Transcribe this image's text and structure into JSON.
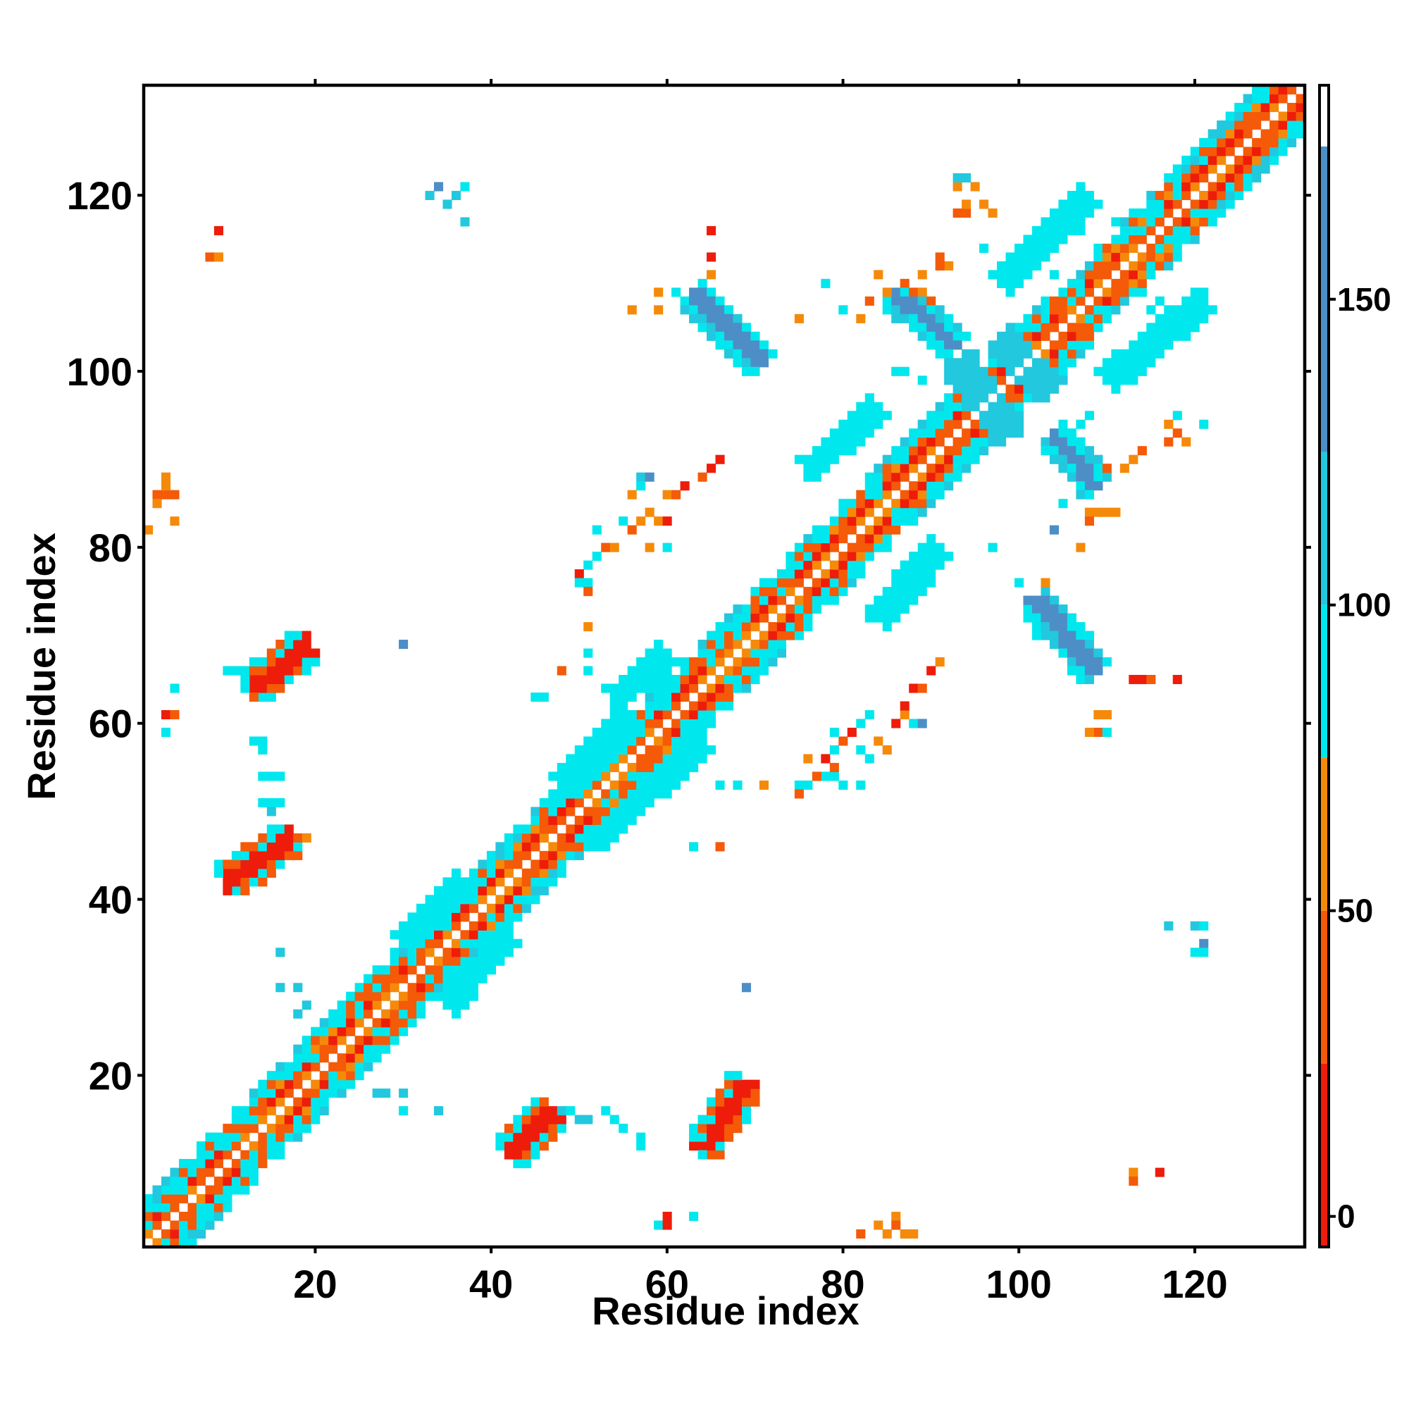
{
  "chart_data": {
    "type": "heatmap",
    "title": "",
    "xlabel": "Residue index",
    "ylabel": "Residue index",
    "xlim": [
      0.5,
      132.5
    ],
    "ylim": [
      0.5,
      132.5
    ],
    "x_ticks": [
      20,
      40,
      60,
      80,
      100,
      120
    ],
    "y_ticks": [
      20,
      40,
      60,
      80,
      100,
      120
    ],
    "colorbar": {
      "range": [
        -5,
        185
      ],
      "ticks": [
        0,
        50,
        100,
        150
      ],
      "bands": [
        {
          "from": -5,
          "to": 25,
          "color": "#ee1c0a"
        },
        {
          "from": 25,
          "to": 50,
          "color": "#f45a08"
        },
        {
          "from": 50,
          "to": 75,
          "color": "#f58a0a"
        },
        {
          "from": 75,
          "to": 100,
          "color": "#00e8ee"
        },
        {
          "from": 100,
          "to": 125,
          "color": "#22c8de"
        },
        {
          "from": 125,
          "to": 175,
          "color": "#4d8ec6"
        },
        {
          "from": 175,
          "to": 185,
          "color": "#ffffff"
        }
      ]
    },
    "diagonal": {
      "from": 1,
      "to": 132
    },
    "blocks": [
      {
        "x": [
          1,
          22
        ],
        "y": [
          1,
          22
        ],
        "kind": "alt"
      },
      {
        "x": [
          22,
          43
        ],
        "y": [
          22,
          43
        ],
        "kind": "alt"
      },
      {
        "x": [
          43,
          70
        ],
        "y": [
          43,
          70
        ],
        "kind": "alt"
      },
      {
        "x": [
          70,
          92
        ],
        "y": [
          70,
          92
        ],
        "kind": "alt"
      },
      {
        "x": [
          92,
          108
        ],
        "y": [
          92,
          108
        ],
        "kind": "alt"
      },
      {
        "x": [
          108,
          132
        ],
        "y": [
          108,
          132
        ],
        "kind": "alt"
      }
    ],
    "segments": [
      {
        "from": [
          42,
          11
        ],
        "to": [
          47,
          16
        ],
        "w": 3.6,
        "value": 20
      },
      {
        "from": [
          64,
          12
        ],
        "to": [
          69,
          19
        ],
        "w": 3.6,
        "value": 10
      },
      {
        "from": [
          10,
          42
        ],
        "to": [
          17,
          47
        ],
        "w": 3.6,
        "value": 20
      },
      {
        "from": [
          13,
          64
        ],
        "to": [
          19,
          69
        ],
        "w": 3.6,
        "value": 10
      },
      {
        "from": [
          63,
          109
        ],
        "to": [
          71,
          101
        ],
        "w": 3.4,
        "value": 150
      },
      {
        "from": [
          86,
          109
        ],
        "to": [
          93,
          103
        ],
        "w": 3.2,
        "value": 150
      },
      {
        "from": [
          102,
          74
        ],
        "to": [
          109,
          66
        ],
        "w": 3.4,
        "value": 150
      },
      {
        "from": [
          104,
          93
        ],
        "to": [
          109,
          87
        ],
        "w": 3.2,
        "value": 150
      },
      {
        "from": [
          93,
          101
        ],
        "to": [
          99,
          93
        ],
        "w": 3.6,
        "value": 115
      },
      {
        "from": [
          98,
          104
        ],
        "to": [
          104,
          98
        ],
        "w": 3.2,
        "value": 115
      },
      {
        "from": [
          48,
          53
        ],
        "to": [
          56,
          61
        ],
        "w": 3.2,
        "value": 90
      },
      {
        "from": [
          52,
          47
        ],
        "to": [
          64,
          58
        ],
        "w": 2.4,
        "value": 90
      },
      {
        "from": [
          54,
          63
        ],
        "to": [
          60,
          68
        ],
        "w": 2.4,
        "value": 90
      },
      {
        "from": [
          76,
          89
        ],
        "to": [
          84,
          96
        ],
        "w": 2.4,
        "value": 90
      },
      {
        "from": [
          84,
          72
        ],
        "to": [
          91,
          80
        ],
        "w": 2.6,
        "value": 90
      },
      {
        "from": [
          98,
          110
        ],
        "to": [
          108,
          120
        ],
        "w": 2.6,
        "value": 90
      },
      {
        "from": [
          110,
          99
        ],
        "to": [
          121,
          108
        ],
        "w": 2.6,
        "value": 90
      },
      {
        "from": [
          30,
          35
        ],
        "to": [
          37,
          42
        ],
        "w": 2.0,
        "value": 90
      },
      {
        "from": [
          35,
          28
        ],
        "to": [
          42,
          36
        ],
        "w": 2.0,
        "value": 90
      }
    ],
    "cells": [
      [
        2,
        86,
        40
      ],
      [
        3,
        86,
        40
      ],
      [
        2,
        85,
        60
      ],
      [
        3,
        87,
        60
      ],
      [
        4,
        86,
        40
      ],
      [
        3,
        88,
        60
      ],
      [
        4,
        83,
        60
      ],
      [
        1,
        82,
        60
      ],
      [
        9,
        116,
        10
      ],
      [
        8,
        113,
        40
      ],
      [
        9,
        113,
        60
      ],
      [
        4,
        64,
        90
      ],
      [
        3,
        61,
        10
      ],
      [
        4,
        61,
        40
      ],
      [
        3,
        59,
        90
      ],
      [
        13,
        58,
        90
      ],
      [
        14,
        58,
        90
      ],
      [
        14,
        57,
        90
      ],
      [
        14,
        54,
        90
      ],
      [
        15,
        54,
        90
      ],
      [
        16,
        54,
        90
      ],
      [
        14,
        51,
        90
      ],
      [
        15,
        51,
        90
      ],
      [
        16,
        51,
        90
      ],
      [
        15,
        50,
        115
      ],
      [
        18,
        47,
        40
      ],
      [
        19,
        47,
        60
      ],
      [
        17,
        45,
        40
      ],
      [
        10,
        66,
        90
      ],
      [
        11,
        66,
        90
      ],
      [
        12,
        64,
        90
      ],
      [
        13,
        63,
        40
      ],
      [
        33,
        120,
        115
      ],
      [
        34,
        121,
        150
      ],
      [
        35,
        119,
        115
      ],
      [
        37,
        121,
        90
      ],
      [
        36,
        120,
        115
      ],
      [
        37,
        117,
        115
      ],
      [
        30,
        69,
        150
      ],
      [
        16,
        34,
        115
      ],
      [
        16,
        30,
        115
      ],
      [
        18,
        30,
        115
      ],
      [
        19,
        28,
        115
      ],
      [
        18,
        27,
        115
      ],
      [
        27,
        18,
        115
      ],
      [
        28,
        18,
        115
      ],
      [
        30,
        18,
        115
      ],
      [
        30,
        16,
        90
      ],
      [
        34,
        16,
        115
      ],
      [
        48,
        16,
        115
      ],
      [
        49,
        16,
        90
      ],
      [
        50,
        15,
        115
      ],
      [
        51,
        15,
        115
      ],
      [
        53,
        16,
        90
      ],
      [
        54,
        15,
        90
      ],
      [
        55,
        14,
        90
      ],
      [
        57,
        13,
        90
      ],
      [
        57,
        12,
        90
      ],
      [
        59,
        3,
        90
      ],
      [
        60,
        4,
        10
      ],
      [
        60,
        3,
        10
      ],
      [
        63,
        4,
        90
      ],
      [
        64,
        13,
        90
      ],
      [
        64,
        11,
        90
      ],
      [
        63,
        14,
        90
      ],
      [
        82,
        2,
        40
      ],
      [
        84,
        3,
        60
      ],
      [
        85,
        2,
        60
      ],
      [
        86,
        4,
        60
      ],
      [
        86,
        3,
        40
      ],
      [
        87,
        2,
        60
      ],
      [
        88,
        2,
        60
      ],
      [
        113,
        9,
        60
      ],
      [
        113,
        8,
        40
      ],
      [
        116,
        9,
        10
      ],
      [
        117,
        37,
        115
      ],
      [
        120,
        37,
        115
      ],
      [
        121,
        37,
        90
      ],
      [
        121,
        35,
        150
      ],
      [
        120,
        34,
        90
      ],
      [
        121,
        34,
        90
      ],
      [
        69,
        30,
        150
      ],
      [
        52,
        82,
        90
      ],
      [
        53,
        80,
        40
      ],
      [
        54,
        80,
        60
      ],
      [
        52,
        79,
        90
      ],
      [
        51,
        78,
        90
      ],
      [
        50,
        77,
        10
      ],
      [
        51,
        76,
        90
      ],
      [
        50,
        76,
        90
      ],
      [
        51,
        75,
        40
      ],
      [
        55,
        83,
        90
      ],
      [
        56,
        82,
        40
      ],
      [
        57,
        83,
        60
      ],
      [
        58,
        84,
        60
      ],
      [
        59,
        83,
        60
      ],
      [
        60,
        83,
        10
      ],
      [
        58,
        80,
        60
      ],
      [
        60,
        80,
        90
      ],
      [
        57,
        88,
        115
      ],
      [
        58,
        88,
        150
      ],
      [
        57,
        87,
        90
      ],
      [
        60,
        86,
        60
      ],
      [
        61,
        86,
        40
      ],
      [
        62,
        87,
        10
      ],
      [
        56,
        86,
        60
      ],
      [
        64,
        88,
        40
      ],
      [
        65,
        89,
        10
      ],
      [
        66,
        90,
        10
      ],
      [
        51,
        71,
        60
      ],
      [
        51,
        68,
        90
      ],
      [
        51,
        66,
        90
      ],
      [
        48,
        66,
        40
      ],
      [
        45,
        63,
        90
      ],
      [
        46,
        63,
        90
      ],
      [
        63,
        46,
        90
      ],
      [
        66,
        46,
        40
      ],
      [
        66,
        53,
        90
      ],
      [
        68,
        53,
        90
      ],
      [
        71,
        53,
        60
      ],
      [
        75,
        53,
        90
      ],
      [
        75,
        52,
        40
      ],
      [
        76,
        53,
        90
      ],
      [
        78,
        54,
        90
      ],
      [
        79,
        54,
        90
      ],
      [
        80,
        53,
        90
      ],
      [
        82,
        53,
        90
      ],
      [
        77,
        54,
        40
      ],
      [
        76,
        56,
        60
      ],
      [
        78,
        56,
        10
      ],
      [
        79,
        57,
        90
      ],
      [
        79,
        55,
        40
      ],
      [
        80,
        58,
        40
      ],
      [
        81,
        59,
        10
      ],
      [
        82,
        60,
        90
      ],
      [
        83,
        61,
        90
      ],
      [
        79,
        59,
        90
      ],
      [
        82,
        57,
        90
      ],
      [
        83,
        56,
        90
      ],
      [
        84,
        58,
        60
      ],
      [
        86,
        60,
        10
      ],
      [
        87,
        61,
        60
      ],
      [
        88,
        60,
        90
      ],
      [
        89,
        60,
        150
      ],
      [
        85,
        57,
        60
      ],
      [
        87,
        62,
        10
      ],
      [
        88,
        64,
        10
      ],
      [
        89,
        64,
        40
      ],
      [
        91,
        67,
        60
      ],
      [
        90,
        66,
        10
      ],
      [
        87,
        110,
        40
      ],
      [
        88,
        109,
        40
      ],
      [
        89,
        109,
        60
      ],
      [
        90,
        108,
        40
      ],
      [
        89,
        111,
        60
      ],
      [
        92,
        112,
        60
      ],
      [
        91,
        113,
        40
      ],
      [
        75,
        106,
        60
      ],
      [
        78,
        110,
        90
      ],
      [
        80,
        107,
        90
      ],
      [
        82,
        106,
        60
      ],
      [
        84,
        111,
        60
      ],
      [
        85,
        109,
        60
      ],
      [
        83,
        108,
        40
      ],
      [
        65,
        111,
        60
      ],
      [
        65,
        113,
        10
      ],
      [
        65,
        116,
        10
      ],
      [
        56,
        107,
        60
      ],
      [
        59,
        109,
        60
      ],
      [
        59,
        107,
        60
      ],
      [
        61,
        109,
        90
      ],
      [
        93,
        118,
        40
      ],
      [
        94,
        118,
        40
      ],
      [
        93,
        121,
        60
      ],
      [
        95,
        121,
        60
      ],
      [
        94,
        122,
        115
      ],
      [
        93,
        122,
        115
      ],
      [
        94,
        119,
        60
      ],
      [
        97,
        118,
        60
      ],
      [
        96,
        119,
        60
      ],
      [
        96,
        114,
        90
      ],
      [
        91,
        112,
        40
      ],
      [
        104,
        111,
        90
      ],
      [
        106,
        116,
        90
      ],
      [
        107,
        116,
        90
      ],
      [
        111,
        117,
        90
      ],
      [
        112,
        116,
        90
      ],
      [
        113,
        116,
        90
      ],
      [
        115,
        107,
        90
      ],
      [
        116,
        108,
        90
      ],
      [
        119,
        106,
        90
      ],
      [
        120,
        106,
        90
      ],
      [
        87,
        100,
        90
      ],
      [
        86,
        100,
        90
      ],
      [
        89,
        99,
        90
      ],
      [
        92,
        97,
        90
      ],
      [
        93,
        96,
        90
      ],
      [
        106,
        92,
        90
      ],
      [
        107,
        92,
        90
      ],
      [
        107,
        94,
        90
      ],
      [
        108,
        95,
        90
      ],
      [
        110,
        89,
        40
      ],
      [
        112,
        89,
        60
      ],
      [
        113,
        90,
        60
      ],
      [
        114,
        91,
        40
      ],
      [
        117,
        92,
        40
      ],
      [
        118,
        93,
        40
      ],
      [
        119,
        92,
        60
      ],
      [
        118,
        95,
        90
      ],
      [
        121,
        94,
        90
      ],
      [
        117,
        94,
        60
      ],
      [
        108,
        84,
        60
      ],
      [
        109,
        84,
        60
      ],
      [
        108,
        83,
        40
      ],
      [
        110,
        84,
        60
      ],
      [
        111,
        84,
        60
      ],
      [
        107,
        80,
        60
      ],
      [
        104,
        82,
        150
      ],
      [
        105,
        85,
        90
      ],
      [
        97,
        80,
        90
      ],
      [
        100,
        76,
        90
      ],
      [
        103,
        76,
        60
      ],
      [
        109,
        61,
        60
      ],
      [
        110,
        61,
        60
      ],
      [
        109,
        59,
        40
      ],
      [
        108,
        59,
        60
      ],
      [
        110,
        59,
        90
      ],
      [
        113,
        65,
        10
      ],
      [
        114,
        65,
        10
      ],
      [
        115,
        65,
        40
      ],
      [
        118,
        65,
        10
      ],
      [
        102,
        70,
        90
      ]
    ]
  }
}
